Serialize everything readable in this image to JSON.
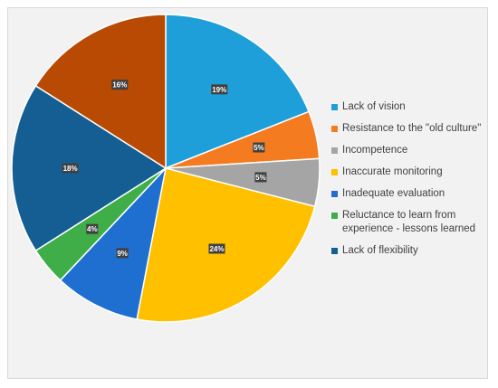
{
  "chart_data": {
    "type": "pie",
    "title": "",
    "legend_position": "right",
    "start_angle_deg": 0,
    "direction": "clockwise",
    "slices": [
      {
        "label": "Lack of vision",
        "value": 19,
        "display": "19%",
        "color": "#1f9fd9"
      },
      {
        "label": "Resistance to the \"old culture\"",
        "value": 5,
        "display": "5%",
        "color": "#f47b20"
      },
      {
        "label": "Incompetence",
        "value": 5,
        "display": "5%",
        "color": "#a5a5a5"
      },
      {
        "label": "Inaccurate monitoring",
        "value": 24,
        "display": "24%",
        "color": "#ffc000"
      },
      {
        "label": "Inadequate evaluation",
        "value": 9,
        "display": "9%",
        "color": "#1f6fd1"
      },
      {
        "label": "Reluctance to learn from experience - lessons learned",
        "value": 4,
        "display": "4%",
        "color": "#3fae49"
      },
      {
        "label": "Lack of flexibility",
        "value": 18,
        "display": "18%",
        "color": "#145e93"
      },
      {
        "label": "",
        "value": 16,
        "display": "16%",
        "color": "#b84a04"
      }
    ]
  }
}
